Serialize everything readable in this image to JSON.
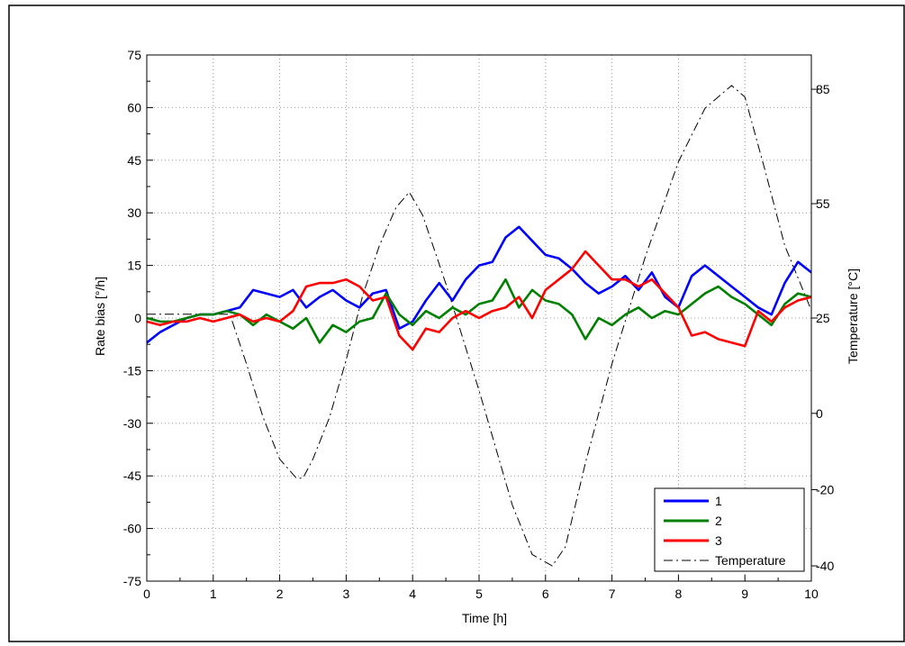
{
  "chart_data": {
    "type": "line",
    "xlabel": "Time [h]",
    "ylabel": "Rate bias [°/h]",
    "y2label": "Temperature [°C]",
    "xlim": [
      0,
      10
    ],
    "ylim": [
      -75,
      75
    ],
    "y2lim": [
      -44,
      94
    ],
    "xticks": [
      0,
      1,
      2,
      3,
      4,
      5,
      6,
      7,
      8,
      9,
      10
    ],
    "yticks": [
      -75,
      -60,
      -45,
      -30,
      -15,
      0,
      15,
      30,
      45,
      60,
      75
    ],
    "y2ticks": [
      -40,
      -20,
      0,
      25,
      55,
      85
    ],
    "grid": true,
    "legend_position": "bottom-right",
    "series": [
      {
        "name": "1",
        "color": "#0000ff",
        "axis": "left",
        "x": [
          0,
          0.2,
          0.4,
          0.6,
          0.8,
          1.0,
          1.2,
          1.4,
          1.6,
          1.8,
          2.0,
          2.2,
          2.4,
          2.6,
          2.8,
          3.0,
          3.2,
          3.4,
          3.6,
          3.8,
          4.0,
          4.2,
          4.4,
          4.6,
          4.8,
          5.0,
          5.2,
          5.4,
          5.6,
          5.8,
          6.0,
          6.2,
          6.4,
          6.6,
          6.8,
          7.0,
          7.2,
          7.4,
          7.6,
          7.8,
          8.0,
          8.2,
          8.4,
          8.6,
          8.8,
          9.0,
          9.2,
          9.4,
          9.6,
          9.8,
          10.0
        ],
        "y": [
          -7,
          -4,
          -2,
          0,
          1,
          1,
          2,
          3,
          8,
          7,
          6,
          8,
          3,
          6,
          8,
          5,
          3,
          7,
          8,
          -3,
          -1,
          5,
          10,
          5,
          11,
          15,
          16,
          23,
          26,
          22,
          18,
          17,
          14,
          10,
          7,
          9,
          12,
          8,
          13,
          6,
          3,
          12,
          15,
          12,
          9,
          6,
          3,
          1,
          10,
          16,
          13
        ]
      },
      {
        "name": "2",
        "color": "#008000",
        "axis": "left",
        "x": [
          0,
          0.2,
          0.4,
          0.6,
          0.8,
          1.0,
          1.2,
          1.4,
          1.6,
          1.8,
          2.0,
          2.2,
          2.4,
          2.6,
          2.8,
          3.0,
          3.2,
          3.4,
          3.6,
          3.8,
          4.0,
          4.2,
          4.4,
          4.6,
          4.8,
          5.0,
          5.2,
          5.4,
          5.6,
          5.8,
          6.0,
          6.2,
          6.4,
          6.6,
          6.8,
          7.0,
          7.2,
          7.4,
          7.6,
          7.8,
          8.0,
          8.2,
          8.4,
          8.6,
          8.8,
          9.0,
          9.2,
          9.4,
          9.6,
          9.8,
          10.0
        ],
        "y": [
          0,
          -1,
          -1,
          0,
          1,
          1,
          2,
          1,
          -2,
          1,
          -1,
          -3,
          0,
          -7,
          -2,
          -4,
          -1,
          0,
          7,
          1,
          -2,
          2,
          0,
          3,
          1,
          4,
          5,
          11,
          3,
          8,
          5,
          4,
          1,
          -6,
          0,
          -2,
          1,
          3,
          0,
          2,
          1,
          4,
          7,
          9,
          6,
          4,
          1,
          -2,
          4,
          7,
          6
        ]
      },
      {
        "name": "3",
        "color": "#ff0000",
        "axis": "left",
        "x": [
          0,
          0.2,
          0.4,
          0.6,
          0.8,
          1.0,
          1.2,
          1.4,
          1.6,
          1.8,
          2.0,
          2.2,
          2.4,
          2.6,
          2.8,
          3.0,
          3.2,
          3.4,
          3.6,
          3.8,
          4.0,
          4.2,
          4.4,
          4.6,
          4.8,
          5.0,
          5.2,
          5.4,
          5.6,
          5.8,
          6.0,
          6.2,
          6.4,
          6.6,
          6.8,
          7.0,
          7.2,
          7.4,
          7.6,
          7.8,
          8.0,
          8.2,
          8.4,
          8.6,
          8.8,
          9.0,
          9.2,
          9.4,
          9.6,
          9.8,
          10.0
        ],
        "y": [
          -1,
          -2,
          -1,
          -1,
          0,
          -1,
          0,
          1,
          -1,
          0,
          -1,
          2,
          9,
          10,
          10,
          11,
          9,
          5,
          6,
          -5,
          -9,
          -3,
          -4,
          0,
          2,
          0,
          2,
          3,
          6,
          0,
          8,
          11,
          14,
          19,
          15,
          11,
          11,
          9,
          11,
          7,
          3,
          -5,
          -4,
          -6,
          -7,
          -8,
          2,
          -1,
          3,
          5,
          6
        ]
      },
      {
        "name": "Temperature",
        "color": "#000000",
        "dash": "dashdot",
        "axis": "right",
        "x": [
          0,
          0.25,
          0.5,
          0.75,
          1.0,
          1.25,
          1.5,
          1.75,
          2.0,
          2.25,
          2.35,
          2.5,
          2.75,
          3.0,
          3.25,
          3.5,
          3.75,
          3.95,
          4.15,
          4.5,
          5.0,
          5.5,
          5.8,
          6.1,
          6.3,
          6.6,
          7.0,
          7.5,
          8.0,
          8.4,
          8.8,
          9.0,
          9.3,
          9.6,
          10.0
        ],
        "y": [
          26,
          26,
          26,
          26,
          26,
          26,
          13,
          -1,
          -12,
          -17,
          -17,
          -12,
          -1,
          14,
          31,
          44,
          54,
          58,
          52,
          34,
          6,
          -24,
          -37,
          -40,
          -35,
          -13,
          13,
          41,
          66,
          80,
          86,
          83,
          64,
          44,
          27
        ]
      }
    ]
  }
}
